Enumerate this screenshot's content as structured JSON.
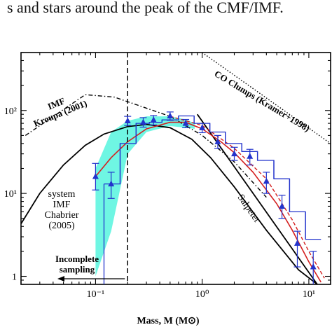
{
  "caption_text": "s and stars around the peak of the CMF/IMF.",
  "chart_data": {
    "type": "line",
    "xscale": "log",
    "yscale": "log",
    "xlim": [
      0.02,
      16
    ],
    "ylim": [
      0.8,
      500
    ],
    "xlabel": "Mass, M (M⊙)",
    "ylabel": "",
    "x_ticks": [
      {
        "value": 0.1,
        "label": "10⁻¹"
      },
      {
        "value": 1,
        "label": "10⁰"
      },
      {
        "value": 10,
        "label": "10¹"
      }
    ],
    "y_ticks": [
      {
        "value": 1,
        "label": "1"
      },
      {
        "value": 10,
        "label": "10¹"
      },
      {
        "value": 100,
        "label": "10²"
      }
    ],
    "annotations": {
      "kroupa": "IMF\nKroupa (2001)",
      "co_clumps": "CO Clumps (Kramer+1998)",
      "chabrier": "system\nIMF\nChabrier\n(2005)",
      "salpeter": "Salpeter",
      "incomplete": "Incomplete\nsampling"
    },
    "completeness_limit_x": 0.2,
    "series": [
      {
        "style": "observed-points",
        "color": "#2233cc",
        "x": [
          0.1,
          0.14,
          0.2,
          0.28,
          0.35,
          0.5,
          0.7,
          1.0,
          1.4,
          2.0,
          2.8,
          4.0,
          5.6,
          7.8,
          11.0
        ],
        "y": [
          16,
          13,
          75,
          72,
          77,
          86,
          70,
          62,
          42,
          30,
          28,
          14,
          7,
          2.5,
          1.3
        ],
        "yerr_low": [
          11,
          8.7,
          66,
          63,
          67,
          76,
          62,
          54,
          35,
          25,
          22,
          10,
          5,
          1.3,
          0.6
        ],
        "yerr_high": [
          23,
          18,
          85,
          82,
          87,
          96,
          78,
          70,
          50,
          36,
          34,
          18,
          9.5,
          3.5,
          2.0
        ]
      },
      {
        "style": "histogram",
        "color": "#2233cc",
        "bins": [
          0.12,
          0.17,
          0.24,
          0.32,
          0.42,
          0.6,
          0.84,
          1.18,
          1.65,
          2.35,
          3.3,
          4.7,
          6.6,
          9.3,
          13
        ],
        "values": [
          13,
          40,
          70,
          72,
          77,
          86,
          70,
          55,
          40,
          32,
          25,
          15,
          6,
          2.8
        ]
      },
      {
        "style": "model-fit",
        "color": "#d42020",
        "x": [
          0.1,
          0.14,
          0.2,
          0.3,
          0.5,
          0.7,
          1.0,
          1.5,
          2.0,
          3.0,
          5.0,
          7.0,
          10.0,
          13.0
        ],
        "y": [
          16,
          27,
          42,
          60,
          72,
          72,
          60,
          42,
          31,
          18,
          7.5,
          3.6,
          1.5,
          0.85
        ]
      },
      {
        "style": "model-fit-dashed",
        "color": "#d42020",
        "x": [
          0.5,
          1.0,
          2.0,
          4.0,
          7.0,
          10.0,
          14.0
        ],
        "y": [
          85,
          66,
          35,
          15,
          4.8,
          2.0,
          0.95
        ]
      },
      {
        "style": "imf",
        "name": "system IMF Chabrier (2005)",
        "color": "#000000",
        "x": [
          0.02,
          0.03,
          0.05,
          0.08,
          0.12,
          0.2,
          0.3,
          0.5,
          0.8,
          1.2,
          2.0,
          4.0,
          8.0,
          12.0
        ],
        "y": [
          4.3,
          10,
          22,
          38,
          52,
          64,
          68,
          62,
          45,
          27,
          12,
          3.6,
          1.2,
          0.8
        ]
      },
      {
        "style": "imf-dashdot",
        "name": "IMF Kroupa (2001)",
        "color": "#000000",
        "x": [
          0.022,
          0.08,
          0.15,
          0.5,
          1.0,
          2.0,
          4.0
        ],
        "y": [
          50,
          155,
          145,
          85,
          50,
          24,
          9
        ]
      },
      {
        "style": "salpeter",
        "name": "Salpeter",
        "color": "#000000",
        "x": [
          0.9,
          12.0
        ],
        "y": [
          90,
          0.8
        ]
      },
      {
        "style": "kramer-dotted",
        "name": "CO Clumps (Kramer+1998)",
        "color": "#000000",
        "x": [
          1.0,
          16.0
        ],
        "y": [
          500,
          40
        ]
      },
      {
        "style": "band",
        "color": "#5ff5e0",
        "x": [
          0.1,
          0.14,
          0.2,
          0.3,
          0.5,
          0.7,
          0.85
        ],
        "low": [
          1.0,
          3.5,
          30,
          55,
          65,
          62,
          60
        ],
        "high": [
          20,
          55,
          75,
          85,
          85,
          78,
          70
        ]
      }
    ]
  }
}
